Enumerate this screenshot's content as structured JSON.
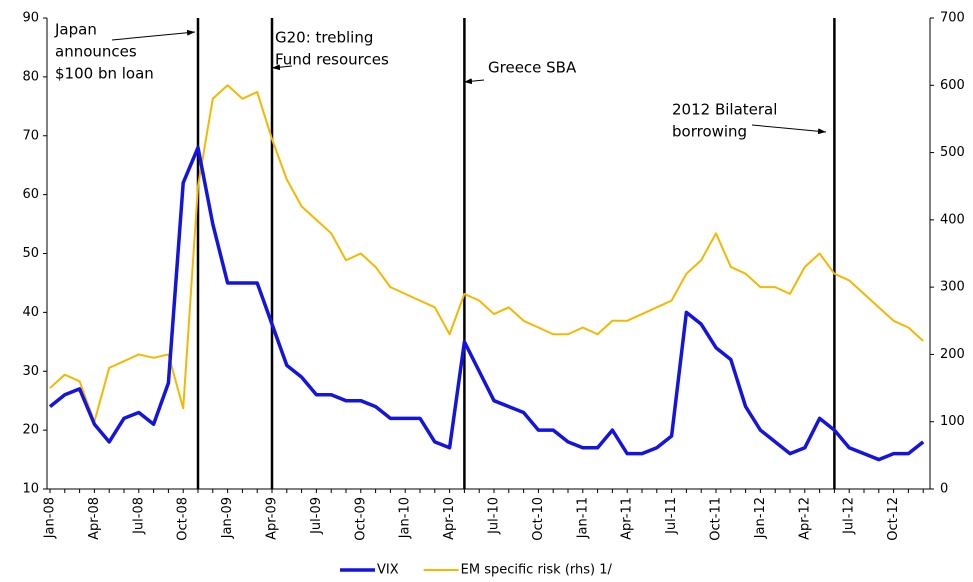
{
  "chart_data": {
    "type": "line",
    "categories": [
      "Jan-08",
      null,
      null,
      "Apr-08",
      null,
      null,
      "Jul-08",
      null,
      null,
      "Oct-08",
      null,
      null,
      "Jan-09",
      null,
      null,
      "Apr-09",
      null,
      null,
      "Jul-09",
      null,
      null,
      "Oct-09",
      null,
      null,
      "Jan-10",
      null,
      null,
      "Apr-10",
      null,
      null,
      "Jul-10",
      null,
      null,
      "Oct-10",
      null,
      null,
      "Jan-11",
      null,
      null,
      "Apr-11",
      null,
      null,
      "Jul-11",
      null,
      null,
      "Oct-11",
      null,
      null,
      "Jan-12",
      null,
      null,
      "Apr-12",
      null,
      null,
      "Jul-12",
      null,
      null,
      "Oct-12",
      null,
      null
    ],
    "series": [
      {
        "name": "VIX",
        "color": "#1414e0",
        "axis": "y",
        "values": [
          24,
          26,
          27,
          21,
          18,
          22,
          23,
          21,
          28,
          62,
          68,
          55,
          45,
          45,
          45,
          38,
          31,
          29,
          26,
          26,
          25,
          25,
          24,
          22,
          22,
          22,
          18,
          17,
          35,
          30,
          25,
          24,
          23,
          20,
          20,
          18,
          17,
          17,
          20,
          16,
          16,
          17,
          19,
          40,
          38,
          34,
          32,
          24,
          20,
          18,
          16,
          17,
          22,
          20,
          17,
          16,
          15,
          16,
          16,
          18
        ]
      },
      {
        "name": "EM specific risk (rhs) 1/",
        "color": "#f5b800",
        "axis": "y2",
        "values": [
          150,
          170,
          160,
          100,
          180,
          190,
          200,
          195,
          200,
          120,
          450,
          580,
          600,
          580,
          590,
          520,
          460,
          420,
          400,
          380,
          340,
          350,
          330,
          300,
          290,
          280,
          270,
          230,
          290,
          280,
          260,
          270,
          250,
          240,
          230,
          230,
          240,
          230,
          250,
          250,
          260,
          270,
          280,
          320,
          340,
          380,
          330,
          320,
          300,
          300,
          290,
          330,
          350,
          320,
          310,
          290,
          270,
          250,
          240,
          220
        ]
      }
    ],
    "ylim": [
      10,
      90
    ],
    "yticks": [
      10,
      20,
      30,
      40,
      50,
      60,
      70,
      80,
      90
    ],
    "y2lim": [
      0,
      700
    ],
    "y2ticks": [
      0,
      100,
      200,
      300,
      400,
      500,
      600,
      700
    ],
    "legend": "bottom",
    "events": [
      {
        "category_index": 10,
        "label_lines": [
          "Japan",
          "announces",
          "$100 bn loan"
        ]
      },
      {
        "category_index": 15,
        "label_lines": [
          "G20: trebling",
          "Fund resources"
        ]
      },
      {
        "category_index": 28,
        "label_lines": [
          "Greece SBA"
        ]
      },
      {
        "category_index": 53,
        "label_lines": [
          "2012 Bilateral",
          "borrowing"
        ]
      }
    ]
  }
}
